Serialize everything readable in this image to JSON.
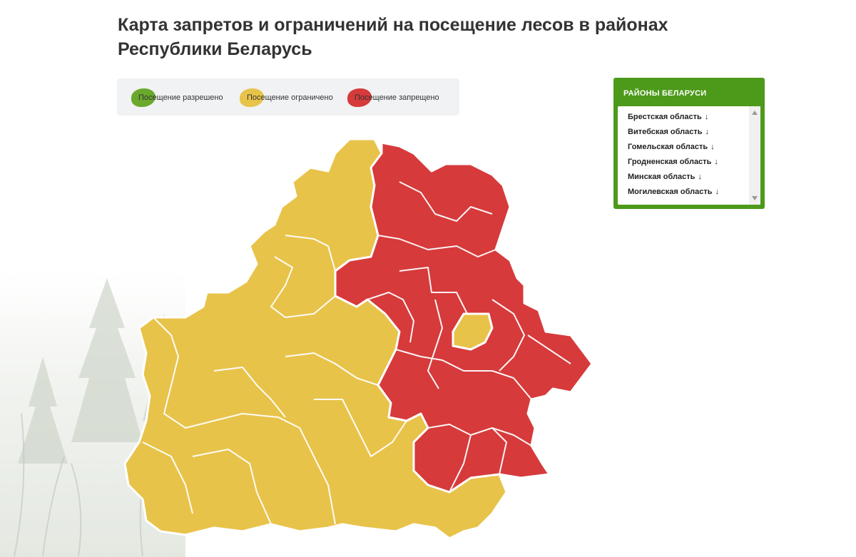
{
  "title": "Карта запретов и ограничений на посещение лесов в районах Республики Беларусь",
  "legend": [
    {
      "label": "Посещение разрешено",
      "color": "#6aa92c"
    },
    {
      "label": "Посещение ограничено",
      "color": "#e8c34a"
    },
    {
      "label": "Посещение запрещено",
      "color": "#d63a3b"
    }
  ],
  "districts_panel": {
    "title": "РАЙОНЫ БЕЛАРУСИ",
    "items": [
      {
        "label": "Брестская область",
        "arrow": "↓"
      },
      {
        "label": "Витебская область",
        "arrow": "↓"
      },
      {
        "label": "Гомельская область",
        "arrow": "↓"
      },
      {
        "label": "Гродненская область",
        "arrow": "↓"
      },
      {
        "label": "Минская область",
        "arrow": "↓"
      },
      {
        "label": "Могилевская область",
        "arrow": "↓"
      }
    ]
  },
  "map": {
    "colors": {
      "restricted": "#e8c34a",
      "prohibited": "#d63a3b",
      "border": "#ffffff"
    }
  }
}
